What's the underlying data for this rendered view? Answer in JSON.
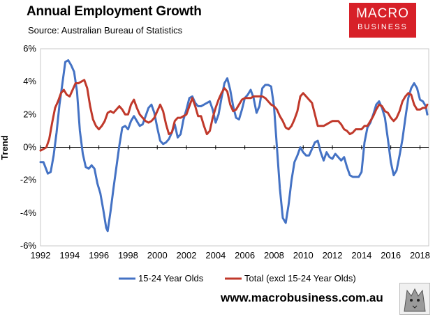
{
  "header": {
    "title": "Annual Employment Growth",
    "subtitle": "Source: Australian Bureau of Statistics"
  },
  "logo": {
    "line1": "MACRO",
    "line2": "BUSINESS",
    "color": "#d72028"
  },
  "footer": {
    "website": "www.macrobusiness.com.au"
  },
  "chart_data": {
    "type": "line",
    "title": "Annual Employment Growth",
    "xlabel": "",
    "ylabel": "Trend",
    "xlim": [
      1992,
      2018.6
    ],
    "ylim": [
      -6,
      6
    ],
    "x_ticks": [
      "1992",
      "1994",
      "1996",
      "1998",
      "2000",
      "2002",
      "2004",
      "2006",
      "2008",
      "2010",
      "2012",
      "2014",
      "2016",
      "2018"
    ],
    "y_ticks": [
      "6%",
      "4%",
      "2%",
      "0%",
      "-2%",
      "-4%",
      "-6%"
    ],
    "y_tick_values": [
      6,
      4,
      2,
      0,
      -2,
      -4,
      -6
    ],
    "grid": false,
    "legend_position": "bottom",
    "series": [
      {
        "name": "15-24 Year Olds",
        "color": "#4472c4",
        "points": [
          [
            1992.0,
            -0.9
          ],
          [
            1992.2,
            -0.9
          ],
          [
            1992.5,
            -1.6
          ],
          [
            1992.7,
            -1.5
          ],
          [
            1992.9,
            -0.5
          ],
          [
            1993.1,
            0.9
          ],
          [
            1993.3,
            2.6
          ],
          [
            1993.5,
            3.9
          ],
          [
            1993.7,
            5.2
          ],
          [
            1993.9,
            5.3
          ],
          [
            1994.1,
            5.0
          ],
          [
            1994.3,
            4.6
          ],
          [
            1994.5,
            3.4
          ],
          [
            1994.7,
            1.0
          ],
          [
            1994.9,
            -0.4
          ],
          [
            1995.1,
            -1.2
          ],
          [
            1995.3,
            -1.3
          ],
          [
            1995.5,
            -1.1
          ],
          [
            1995.7,
            -1.3
          ],
          [
            1995.9,
            -2.2
          ],
          [
            1996.1,
            -2.8
          ],
          [
            1996.3,
            -3.8
          ],
          [
            1996.5,
            -4.9
          ],
          [
            1996.6,
            -5.1
          ],
          [
            1996.8,
            -3.9
          ],
          [
            1997.0,
            -2.5
          ],
          [
            1997.2,
            -1.2
          ],
          [
            1997.4,
            0.1
          ],
          [
            1997.6,
            1.2
          ],
          [
            1997.8,
            1.3
          ],
          [
            1998.0,
            1.1
          ],
          [
            1998.2,
            1.6
          ],
          [
            1998.4,
            1.9
          ],
          [
            1998.6,
            1.6
          ],
          [
            1998.8,
            1.3
          ],
          [
            1999.0,
            1.4
          ],
          [
            1999.2,
            1.9
          ],
          [
            1999.4,
            2.4
          ],
          [
            1999.6,
            2.6
          ],
          [
            1999.8,
            2.1
          ],
          [
            2000.0,
            1.2
          ],
          [
            2000.2,
            0.4
          ],
          [
            2000.4,
            0.2
          ],
          [
            2000.6,
            0.3
          ],
          [
            2000.8,
            0.5
          ],
          [
            2001.0,
            0.9
          ],
          [
            2001.2,
            1.4
          ],
          [
            2001.4,
            0.6
          ],
          [
            2001.6,
            0.8
          ],
          [
            2001.8,
            1.7
          ],
          [
            2002.0,
            2.3
          ],
          [
            2002.2,
            3.0
          ],
          [
            2002.4,
            3.1
          ],
          [
            2002.6,
            2.7
          ],
          [
            2002.8,
            2.5
          ],
          [
            2003.0,
            2.5
          ],
          [
            2003.2,
            2.6
          ],
          [
            2003.4,
            2.7
          ],
          [
            2003.6,
            2.8
          ],
          [
            2003.8,
            2.3
          ],
          [
            2004.0,
            1.5
          ],
          [
            2004.2,
            2.0
          ],
          [
            2004.4,
            3.0
          ],
          [
            2004.6,
            3.9
          ],
          [
            2004.8,
            4.2
          ],
          [
            2005.0,
            3.5
          ],
          [
            2005.2,
            2.5
          ],
          [
            2005.4,
            1.8
          ],
          [
            2005.6,
            1.7
          ],
          [
            2005.8,
            2.3
          ],
          [
            2006.0,
            3.0
          ],
          [
            2006.2,
            3.2
          ],
          [
            2006.4,
            3.5
          ],
          [
            2006.6,
            3.0
          ],
          [
            2006.8,
            2.1
          ],
          [
            2007.0,
            2.5
          ],
          [
            2007.2,
            3.6
          ],
          [
            2007.4,
            3.8
          ],
          [
            2007.6,
            3.8
          ],
          [
            2007.8,
            3.7
          ],
          [
            2008.0,
            2.5
          ],
          [
            2008.2,
            0.0
          ],
          [
            2008.4,
            -2.5
          ],
          [
            2008.6,
            -4.3
          ],
          [
            2008.8,
            -4.6
          ],
          [
            2009.0,
            -3.5
          ],
          [
            2009.2,
            -2.0
          ],
          [
            2009.4,
            -0.9
          ],
          [
            2009.6,
            -0.5
          ],
          [
            2009.8,
            0.0
          ],
          [
            2010.0,
            -0.3
          ],
          [
            2010.2,
            -0.5
          ],
          [
            2010.4,
            -0.5
          ],
          [
            2010.6,
            -0.1
          ],
          [
            2010.8,
            0.3
          ],
          [
            2011.0,
            0.4
          ],
          [
            2011.2,
            -0.3
          ],
          [
            2011.4,
            -0.8
          ],
          [
            2011.6,
            -0.3
          ],
          [
            2011.8,
            -0.6
          ],
          [
            2012.0,
            -0.7
          ],
          [
            2012.2,
            -0.4
          ],
          [
            2012.4,
            -0.6
          ],
          [
            2012.6,
            -0.8
          ],
          [
            2012.8,
            -0.6
          ],
          [
            2013.0,
            -1.2
          ],
          [
            2013.2,
            -1.7
          ],
          [
            2013.4,
            -1.8
          ],
          [
            2013.6,
            -1.8
          ],
          [
            2013.8,
            -1.8
          ],
          [
            2014.0,
            -1.5
          ],
          [
            2014.2,
            0.3
          ],
          [
            2014.4,
            1.2
          ],
          [
            2014.6,
            1.5
          ],
          [
            2014.8,
            2.0
          ],
          [
            2015.0,
            2.6
          ],
          [
            2015.2,
            2.8
          ],
          [
            2015.4,
            2.4
          ],
          [
            2015.6,
            1.8
          ],
          [
            2015.8,
            0.5
          ],
          [
            2016.0,
            -0.9
          ],
          [
            2016.2,
            -1.7
          ],
          [
            2016.4,
            -1.4
          ],
          [
            2016.6,
            -0.5
          ],
          [
            2016.8,
            0.5
          ],
          [
            2017.0,
            1.8
          ],
          [
            2017.2,
            3.0
          ],
          [
            2017.4,
            3.6
          ],
          [
            2017.6,
            3.9
          ],
          [
            2017.8,
            3.6
          ],
          [
            2018.0,
            2.9
          ],
          [
            2018.2,
            2.8
          ],
          [
            2018.4,
            2.5
          ],
          [
            2018.5,
            2.0
          ]
        ]
      },
      {
        "name": "Total (excl 15-24 Year Olds)",
        "color": "#c0392b",
        "points": [
          [
            1992.0,
            -0.2
          ],
          [
            1992.2,
            -0.1
          ],
          [
            1992.4,
            0.0
          ],
          [
            1992.6,
            0.5
          ],
          [
            1992.8,
            1.5
          ],
          [
            1993.0,
            2.4
          ],
          [
            1993.2,
            2.8
          ],
          [
            1993.4,
            3.3
          ],
          [
            1993.6,
            3.5
          ],
          [
            1993.8,
            3.2
          ],
          [
            1994.0,
            3.1
          ],
          [
            1994.2,
            3.5
          ],
          [
            1994.4,
            3.9
          ],
          [
            1994.6,
            3.9
          ],
          [
            1994.8,
            4.0
          ],
          [
            1995.0,
            4.1
          ],
          [
            1995.2,
            3.6
          ],
          [
            1995.4,
            2.5
          ],
          [
            1995.6,
            1.7
          ],
          [
            1995.8,
            1.3
          ],
          [
            1996.0,
            1.1
          ],
          [
            1996.2,
            1.3
          ],
          [
            1996.4,
            1.6
          ],
          [
            1996.6,
            2.1
          ],
          [
            1996.8,
            2.2
          ],
          [
            1997.0,
            2.1
          ],
          [
            1997.2,
            2.3
          ],
          [
            1997.4,
            2.5
          ],
          [
            1997.6,
            2.3
          ],
          [
            1997.8,
            2.0
          ],
          [
            1998.0,
            2.0
          ],
          [
            1998.2,
            2.6
          ],
          [
            1998.4,
            2.9
          ],
          [
            1998.6,
            2.4
          ],
          [
            1998.8,
            2.0
          ],
          [
            1999.0,
            1.8
          ],
          [
            1999.2,
            1.6
          ],
          [
            1999.4,
            1.5
          ],
          [
            1999.6,
            1.6
          ],
          [
            1999.8,
            1.8
          ],
          [
            2000.0,
            2.2
          ],
          [
            2000.2,
            2.6
          ],
          [
            2000.4,
            2.2
          ],
          [
            2000.6,
            1.4
          ],
          [
            2000.8,
            0.8
          ],
          [
            2001.0,
            0.9
          ],
          [
            2001.2,
            1.6
          ],
          [
            2001.4,
            1.8
          ],
          [
            2001.6,
            1.8
          ],
          [
            2001.8,
            1.9
          ],
          [
            2002.0,
            2.0
          ],
          [
            2002.2,
            2.5
          ],
          [
            2002.4,
            3.0
          ],
          [
            2002.6,
            2.5
          ],
          [
            2002.8,
            1.9
          ],
          [
            2003.0,
            1.9
          ],
          [
            2003.2,
            1.3
          ],
          [
            2003.4,
            0.8
          ],
          [
            2003.6,
            1.0
          ],
          [
            2003.8,
            1.8
          ],
          [
            2004.0,
            2.4
          ],
          [
            2004.2,
            2.9
          ],
          [
            2004.4,
            3.3
          ],
          [
            2004.6,
            3.6
          ],
          [
            2004.8,
            3.4
          ],
          [
            2005.0,
            2.6
          ],
          [
            2005.2,
            2.2
          ],
          [
            2005.4,
            2.3
          ],
          [
            2005.6,
            2.6
          ],
          [
            2005.8,
            2.9
          ],
          [
            2006.0,
            3.0
          ],
          [
            2006.2,
            3.0
          ],
          [
            2006.4,
            3.0
          ],
          [
            2006.6,
            3.1
          ],
          [
            2006.8,
            3.1
          ],
          [
            2007.0,
            3.1
          ],
          [
            2007.2,
            3.1
          ],
          [
            2007.4,
            3.0
          ],
          [
            2007.6,
            2.8
          ],
          [
            2007.8,
            2.6
          ],
          [
            2008.0,
            2.5
          ],
          [
            2008.2,
            2.3
          ],
          [
            2008.4,
            1.9
          ],
          [
            2008.6,
            1.6
          ],
          [
            2008.8,
            1.2
          ],
          [
            2009.0,
            1.1
          ],
          [
            2009.2,
            1.3
          ],
          [
            2009.4,
            1.7
          ],
          [
            2009.6,
            2.2
          ],
          [
            2009.8,
            3.1
          ],
          [
            2010.0,
            3.3
          ],
          [
            2010.2,
            3.1
          ],
          [
            2010.4,
            2.9
          ],
          [
            2010.6,
            2.7
          ],
          [
            2010.8,
            2.0
          ],
          [
            2011.0,
            1.3
          ],
          [
            2011.2,
            1.3
          ],
          [
            2011.4,
            1.3
          ],
          [
            2011.6,
            1.4
          ],
          [
            2011.8,
            1.5
          ],
          [
            2012.0,
            1.6
          ],
          [
            2012.2,
            1.6
          ],
          [
            2012.4,
            1.6
          ],
          [
            2012.6,
            1.4
          ],
          [
            2012.8,
            1.1
          ],
          [
            2013.0,
            1.0
          ],
          [
            2013.2,
            0.8
          ],
          [
            2013.4,
            0.9
          ],
          [
            2013.6,
            1.1
          ],
          [
            2013.8,
            1.1
          ],
          [
            2014.0,
            1.1
          ],
          [
            2014.2,
            1.3
          ],
          [
            2014.4,
            1.3
          ],
          [
            2014.6,
            1.6
          ],
          [
            2014.8,
            1.9
          ],
          [
            2015.0,
            2.3
          ],
          [
            2015.2,
            2.6
          ],
          [
            2015.4,
            2.5
          ],
          [
            2015.6,
            2.2
          ],
          [
            2015.8,
            2.1
          ],
          [
            2016.0,
            1.8
          ],
          [
            2016.2,
            1.6
          ],
          [
            2016.4,
            1.8
          ],
          [
            2016.6,
            2.2
          ],
          [
            2016.8,
            2.8
          ],
          [
            2017.0,
            3.1
          ],
          [
            2017.2,
            3.3
          ],
          [
            2017.4,
            3.2
          ],
          [
            2017.6,
            2.6
          ],
          [
            2017.8,
            2.3
          ],
          [
            2018.0,
            2.3
          ],
          [
            2018.2,
            2.4
          ],
          [
            2018.4,
            2.4
          ],
          [
            2018.5,
            2.6
          ]
        ]
      }
    ]
  }
}
